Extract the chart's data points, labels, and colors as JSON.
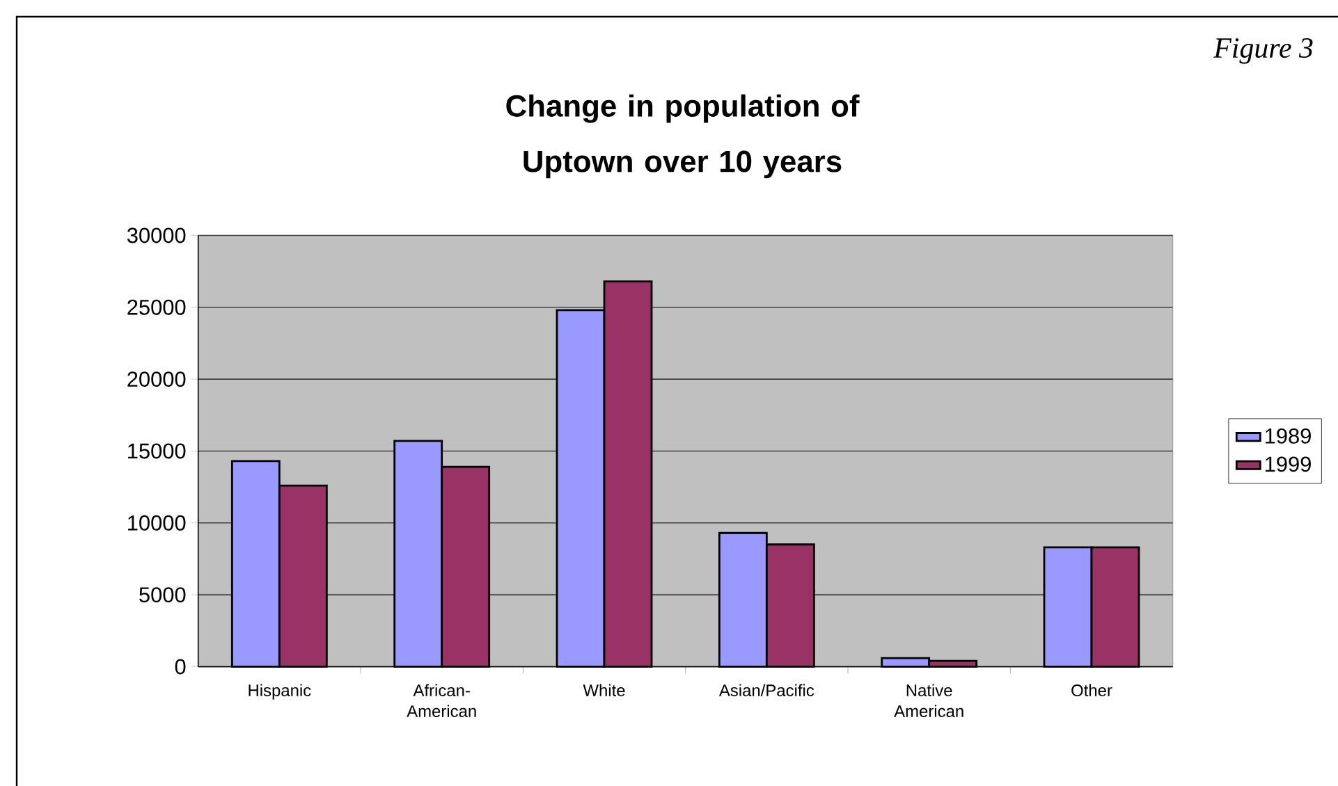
{
  "chart_data": {
    "type": "bar",
    "title": "Change in population of Uptown over 10 years",
    "annotations": [
      "Figure 3"
    ],
    "categories": [
      "Hispanic",
      "African-American",
      "White",
      "Asian/Pacific",
      "Native American",
      "Other"
    ],
    "series": [
      {
        "name": "1989",
        "color": "#9999ff",
        "values": [
          14300,
          15700,
          24800,
          9300,
          600,
          8300
        ]
      },
      {
        "name": "1999",
        "color": "#993366",
        "values": [
          12600,
          13900,
          26800,
          8500,
          400,
          8300
        ]
      }
    ],
    "ylim": [
      0,
      30000
    ],
    "yticks": [
      0,
      5000,
      10000,
      15000,
      20000,
      25000,
      30000
    ],
    "grid": "y",
    "legend": "right"
  }
}
